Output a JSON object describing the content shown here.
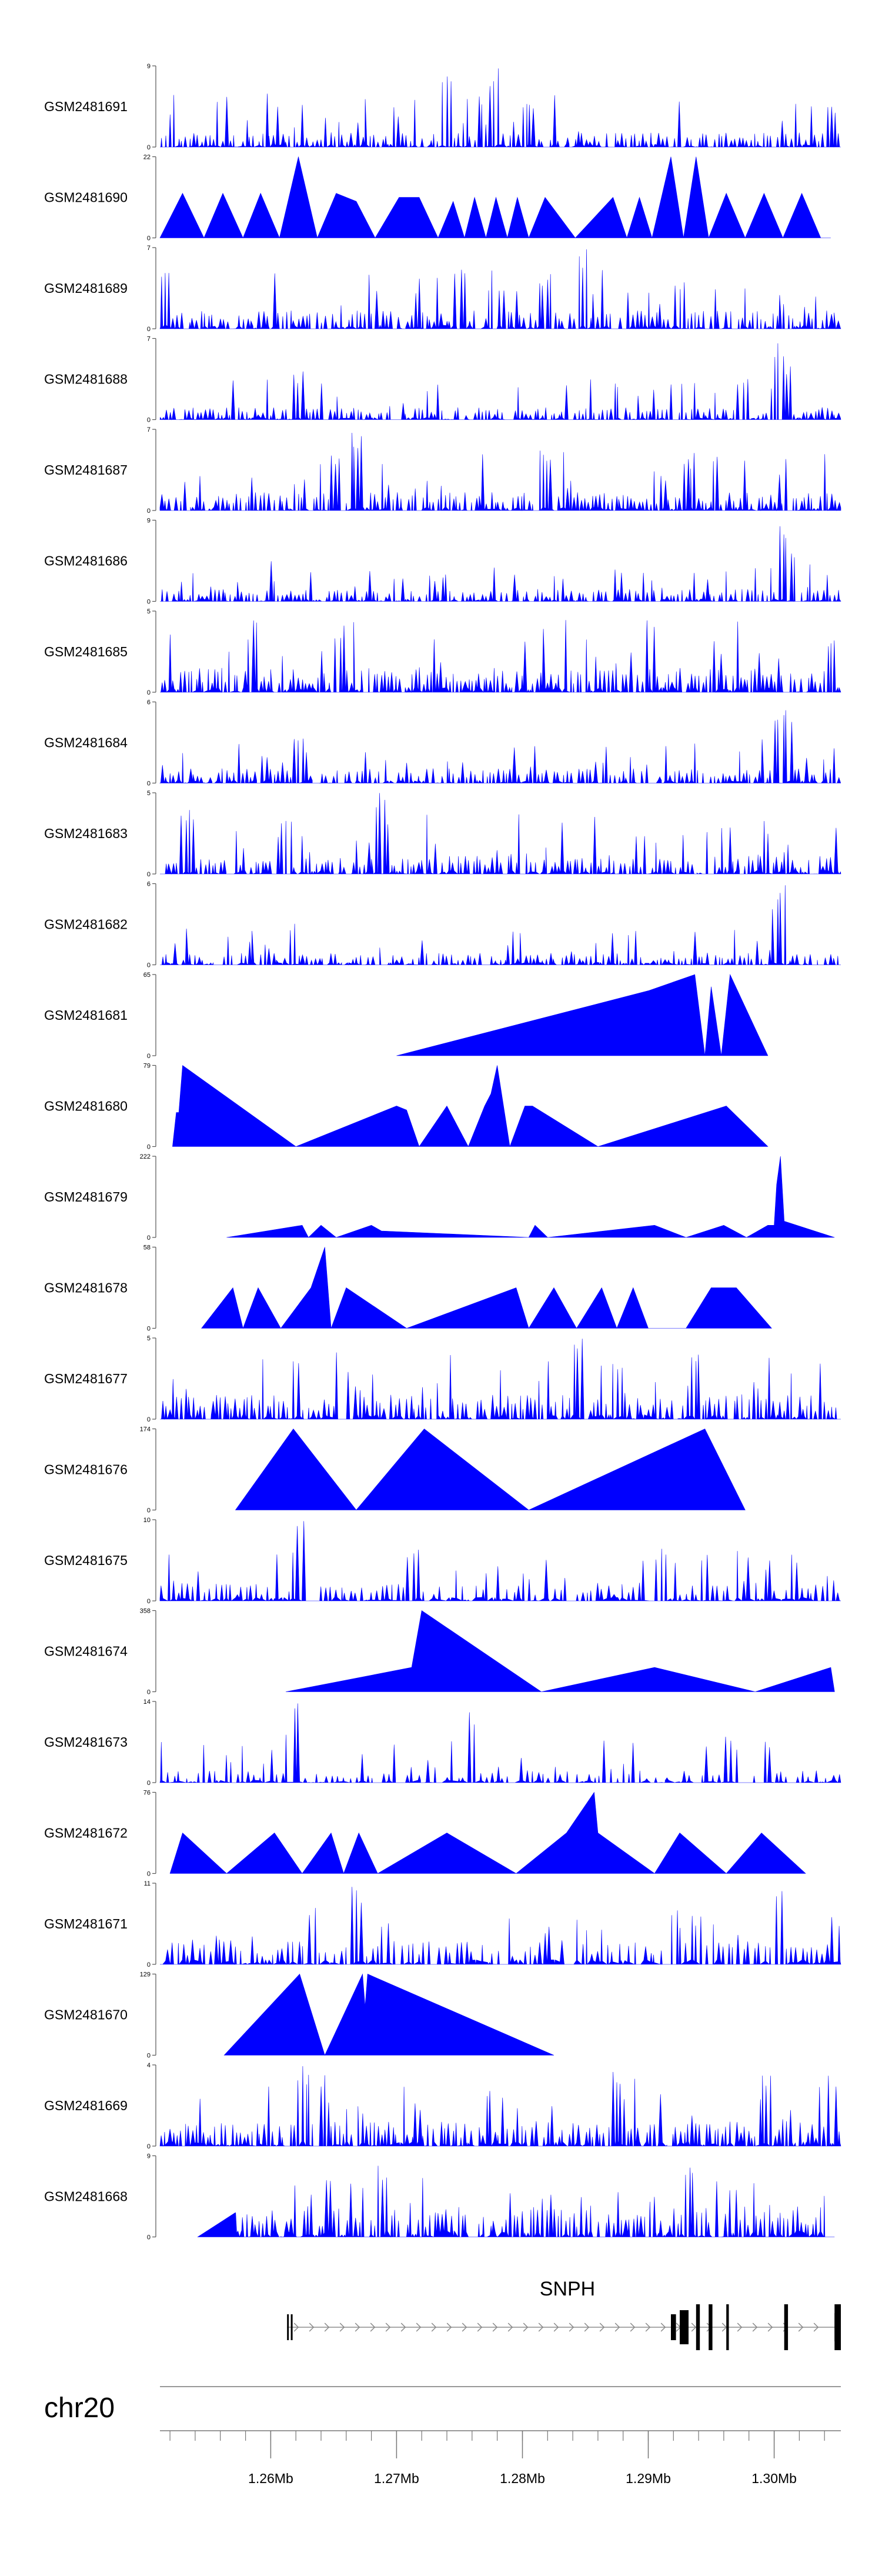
{
  "chart_data": {
    "type": "area",
    "title": "",
    "chromosome": "chr20",
    "fill_color": "#0000ff",
    "gene_color": "#000000",
    "axis_color": "#555555",
    "x_range": [
      1.2512,
      1.3053
    ],
    "x_unit": "Mb",
    "x_ticks": [
      {
        "value": 1.26,
        "label": "1.26Mb"
      },
      {
        "value": 1.27,
        "label": "1.27Mb"
      },
      {
        "value": 1.28,
        "label": "1.28Mb"
      },
      {
        "value": 1.29,
        "label": "1.29Mb"
      },
      {
        "value": 1.3,
        "label": "1.30Mb"
      }
    ],
    "minor_tick_step": 0.002,
    "tracks": [
      {
        "name": "GSM2481691",
        "ymax": 9,
        "ymax_label": "9",
        "style": "dense",
        "start": 1.2512,
        "end": 1.3053,
        "density": 170,
        "base": 0.12,
        "spike": 0.55,
        "seed": 1,
        "peaks": [
          [
            1.274,
            0.95
          ],
          [
            1.2778,
            1.0
          ],
          [
            1.2805,
            0.55
          ],
          [
            1.3045,
            0.5
          ]
        ]
      },
      {
        "name": "GSM2481690",
        "ymax": 22,
        "ymax_label": "22",
        "style": "sparse",
        "vertices": [
          [
            1.2512,
            0
          ],
          [
            1.253,
            0.55
          ],
          [
            1.2547,
            0
          ],
          [
            1.2562,
            0.55
          ],
          [
            1.2578,
            0
          ],
          [
            1.2592,
            0.55
          ],
          [
            1.2607,
            0
          ],
          [
            1.2622,
            1.0
          ],
          [
            1.2637,
            0
          ],
          [
            1.2652,
            0.55
          ],
          [
            1.2668,
            0.45
          ],
          [
            1.2683,
            0
          ],
          [
            1.2702,
            0.5
          ],
          [
            1.2718,
            0.5
          ],
          [
            1.2733,
            0
          ],
          [
            1.2745,
            0.45
          ],
          [
            1.2754,
            0
          ],
          [
            1.2762,
            0.5
          ],
          [
            1.2771,
            0
          ],
          [
            1.2779,
            0.5
          ],
          [
            1.2788,
            0
          ],
          [
            1.2796,
            0.5
          ],
          [
            1.2805,
            0
          ],
          [
            1.2818,
            0.5
          ],
          [
            1.2842,
            0
          ],
          [
            1.2872,
            0.5
          ],
          [
            1.2883,
            0
          ],
          [
            1.2893,
            0.5
          ],
          [
            1.2903,
            0
          ],
          [
            1.2918,
            1.0
          ],
          [
            1.2928,
            0
          ],
          [
            1.2938,
            1.0
          ],
          [
            1.2948,
            0
          ],
          [
            1.2962,
            0.55
          ],
          [
            1.2977,
            0
          ],
          [
            1.2992,
            0.55
          ],
          [
            1.3007,
            0
          ],
          [
            1.3022,
            0.55
          ],
          [
            1.3037,
            0
          ],
          [
            1.3045,
            0
          ]
        ]
      },
      {
        "name": "GSM2481689",
        "ymax": 7,
        "ymax_label": "7",
        "style": "dense",
        "start": 1.2512,
        "end": 1.3053,
        "density": 175,
        "base": 0.15,
        "spike": 0.6,
        "seed": 2,
        "peaks": [
          [
            1.2517,
            0.8
          ],
          [
            1.2818,
            0.7
          ],
          [
            1.2848,
            1.0
          ],
          [
            1.2925,
            0.6
          ]
        ]
      },
      {
        "name": "GSM2481688",
        "ymax": 7,
        "ymax_label": "7",
        "style": "dense",
        "start": 1.2512,
        "end": 1.3053,
        "density": 170,
        "base": 0.1,
        "spike": 0.4,
        "seed": 3,
        "peaks": [
          [
            1.2622,
            0.6
          ],
          [
            1.2975,
            0.5
          ],
          [
            1.3005,
            1.0
          ],
          [
            1.301,
            0.7
          ]
        ]
      },
      {
        "name": "GSM2481687",
        "ymax": 7,
        "ymax_label": "7",
        "style": "dense",
        "start": 1.2512,
        "end": 1.3053,
        "density": 180,
        "base": 0.15,
        "spike": 0.65,
        "seed": 4,
        "peaks": [
          [
            1.2668,
            1.0
          ],
          [
            1.2652,
            0.7
          ],
          [
            1.2818,
            0.75
          ],
          [
            1.2932,
            0.65
          ]
        ]
      },
      {
        "name": "GSM2481686",
        "ymax": 9,
        "ymax_label": "9",
        "style": "dense",
        "start": 1.2512,
        "end": 1.3053,
        "density": 170,
        "base": 0.1,
        "spike": 0.4,
        "seed": 5,
        "peaks": [
          [
            1.3005,
            1.0
          ],
          [
            1.3012,
            0.6
          ],
          [
            1.3015,
            0.4
          ]
        ]
      },
      {
        "name": "GSM2481685",
        "ymax": 5,
        "ymax_label": "5",
        "style": "dense",
        "start": 1.2512,
        "end": 1.3053,
        "density": 180,
        "base": 0.2,
        "spike": 0.7,
        "seed": 6,
        "peaks": [
          [
            1.2588,
            1.0
          ],
          [
            1.2585,
            0.85
          ],
          [
            1.2655,
            0.8
          ],
          [
            1.3045,
            0.7
          ]
        ]
      },
      {
        "name": "GSM2481684",
        "ymax": 6,
        "ymax_label": "6",
        "style": "dense",
        "start": 1.2512,
        "end": 1.3053,
        "density": 170,
        "base": 0.12,
        "spike": 0.45,
        "seed": 7,
        "peaks": [
          [
            1.2622,
            0.55
          ],
          [
            1.3005,
            0.9
          ],
          [
            1.3008,
            1.0
          ],
          [
            1.3012,
            0.85
          ]
        ]
      },
      {
        "name": "GSM2481683",
        "ymax": 5,
        "ymax_label": "5",
        "style": "dense",
        "start": 1.2512,
        "end": 1.3053,
        "density": 175,
        "base": 0.15,
        "spike": 0.6,
        "seed": 8,
        "peaks": [
          [
            1.2688,
            1.0
          ],
          [
            1.2533,
            0.8
          ],
          [
            1.2612,
            0.75
          ]
        ]
      },
      {
        "name": "GSM2481682",
        "ymax": 6,
        "ymax_label": "6",
        "style": "dense",
        "start": 1.2512,
        "end": 1.3053,
        "density": 165,
        "base": 0.1,
        "spike": 0.35,
        "seed": 9,
        "peaks": [
          [
            1.2617,
            0.55
          ],
          [
            1.3002,
            0.75
          ],
          [
            1.3005,
            1.0
          ],
          [
            1.3008,
            0.8
          ]
        ]
      },
      {
        "name": "GSM2481681",
        "ymax": 65,
        "ymax_label": "65",
        "style": "sparse",
        "vertices": [
          [
            1.27,
            0
          ],
          [
            1.29,
            0.8
          ],
          [
            1.2937,
            1.0
          ],
          [
            1.2945,
            0
          ],
          [
            1.295,
            0.85
          ],
          [
            1.2958,
            0
          ],
          [
            1.2965,
            1.0
          ],
          [
            1.2995,
            0
          ]
        ]
      },
      {
        "name": "GSM2481680",
        "ymax": 79,
        "ymax_label": "79",
        "style": "sparse",
        "vertices": [
          [
            1.2522,
            0
          ],
          [
            1.2525,
            0.42
          ],
          [
            1.2527,
            0.42
          ],
          [
            1.253,
            1.0
          ],
          [
            1.262,
            0
          ],
          [
            1.27,
            0.5
          ],
          [
            1.2708,
            0.45
          ],
          [
            1.2718,
            0
          ],
          [
            1.274,
            0.5
          ],
          [
            1.2757,
            0
          ],
          [
            1.277,
            0.5
          ],
          [
            1.2775,
            0.65
          ],
          [
            1.278,
            1.0
          ],
          [
            1.279,
            0
          ],
          [
            1.2802,
            0.5
          ],
          [
            1.2808,
            0.5
          ],
          [
            1.286,
            0
          ],
          [
            1.2962,
            0.5
          ],
          [
            1.2995,
            0
          ]
        ]
      },
      {
        "name": "GSM2481679",
        "ymax": 222,
        "ymax_label": "222",
        "style": "sparse",
        "vertices": [
          [
            1.2565,
            0
          ],
          [
            1.2625,
            0.15
          ],
          [
            1.263,
            0
          ],
          [
            1.264,
            0.15
          ],
          [
            1.2652,
            0
          ],
          [
            1.268,
            0.15
          ],
          [
            1.2688,
            0.08
          ],
          [
            1.2805,
            0
          ],
          [
            1.281,
            0.15
          ],
          [
            1.282,
            0
          ],
          [
            1.2905,
            0.15
          ],
          [
            1.293,
            0
          ],
          [
            1.296,
            0.15
          ],
          [
            1.2978,
            0
          ],
          [
            1.2995,
            0.15
          ],
          [
            1.3,
            0.15
          ],
          [
            1.3002,
            0.65
          ],
          [
            1.3005,
            1.0
          ],
          [
            1.3008,
            0.2
          ],
          [
            1.3048,
            0
          ]
        ]
      },
      {
        "name": "GSM2481678",
        "ymax": 58,
        "ymax_label": "58",
        "style": "sparse",
        "vertices": [
          [
            1.2545,
            0
          ],
          [
            1.257,
            0.5
          ],
          [
            1.2578,
            0
          ],
          [
            1.259,
            0.5
          ],
          [
            1.2608,
            0
          ],
          [
            1.2632,
            0.5
          ],
          [
            1.2643,
            1.0
          ],
          [
            1.2648,
            0
          ],
          [
            1.266,
            0.5
          ],
          [
            1.2708,
            0
          ],
          [
            1.2795,
            0.5
          ],
          [
            1.2805,
            0
          ],
          [
            1.2825,
            0.5
          ],
          [
            1.2843,
            0
          ],
          [
            1.2863,
            0.5
          ],
          [
            1.2875,
            0
          ],
          [
            1.2888,
            0.5
          ],
          [
            1.29,
            0
          ],
          [
            1.293,
            0
          ],
          [
            1.295,
            0.5
          ],
          [
            1.297,
            0.5
          ],
          [
            1.2998,
            0
          ]
        ]
      },
      {
        "name": "GSM2481677",
        "ymax": 5,
        "ymax_label": "5",
        "style": "dense",
        "start": 1.2512,
        "end": 1.3053,
        "density": 175,
        "base": 0.2,
        "spike": 0.65,
        "seed": 10,
        "peaks": [
          [
            1.2845,
            1.0
          ],
          [
            1.2938,
            0.8
          ],
          [
            1.2875,
            0.7
          ]
        ]
      },
      {
        "name": "GSM2481676",
        "ymax": 174,
        "ymax_label": "174",
        "style": "sparse",
        "vertices": [
          [
            1.2572,
            0
          ],
          [
            1.2618,
            1.0
          ],
          [
            1.2668,
            0
          ],
          [
            1.2722,
            1.0
          ],
          [
            1.2805,
            0
          ],
          [
            1.2945,
            1.0
          ],
          [
            1.2977,
            0
          ]
        ]
      },
      {
        "name": "GSM2481675",
        "ymax": 10,
        "ymax_label": "10",
        "style": "dense",
        "start": 1.2512,
        "end": 1.3053,
        "density": 130,
        "base": 0.15,
        "spike": 0.5,
        "seed": 11,
        "peaks": [
          [
            1.2623,
            1.0
          ],
          [
            1.291,
            0.65
          ],
          [
            1.2945,
            0.6
          ],
          [
            1.3015,
            0.6
          ]
        ]
      },
      {
        "name": "GSM2481674",
        "ymax": 358,
        "ymax_label": "358",
        "style": "sparse",
        "vertices": [
          [
            1.2612,
            0
          ],
          [
            1.2712,
            0.3
          ],
          [
            1.272,
            1.0
          ],
          [
            1.2815,
            0
          ],
          [
            1.2905,
            0.3
          ],
          [
            1.2985,
            0
          ],
          [
            1.3045,
            0.3
          ],
          [
            1.3048,
            0
          ]
        ]
      },
      {
        "name": "GSM2481673",
        "ymax": 14,
        "ymax_label": "14",
        "style": "dense",
        "start": 1.2512,
        "end": 1.3053,
        "density": 120,
        "base": 0.1,
        "spike": 0.45,
        "seed": 12,
        "peaks": [
          [
            1.2622,
            1.0
          ],
          [
            1.2615,
            0.7
          ],
          [
            1.2758,
            0.95
          ],
          [
            1.2962,
            0.6
          ]
        ]
      },
      {
        "name": "GSM2481672",
        "ymax": 76,
        "ymax_label": "76",
        "style": "sparse",
        "vertices": [
          [
            1.252,
            0
          ],
          [
            1.253,
            0.5
          ],
          [
            1.2565,
            0
          ],
          [
            1.2603,
            0.5
          ],
          [
            1.2625,
            0
          ],
          [
            1.2648,
            0.5
          ],
          [
            1.2658,
            0
          ],
          [
            1.267,
            0.5
          ],
          [
            1.2685,
            0
          ],
          [
            1.274,
            0.5
          ],
          [
            1.2795,
            0
          ],
          [
            1.2835,
            0.5
          ],
          [
            1.2857,
            1.0
          ],
          [
            1.286,
            0.5
          ],
          [
            1.2905,
            0
          ],
          [
            1.2925,
            0.5
          ],
          [
            1.2962,
            0
          ],
          [
            1.299,
            0.5
          ],
          [
            1.3025,
            0
          ]
        ]
      },
      {
        "name": "GSM2481671",
        "ymax": 11,
        "ymax_label": "11",
        "style": "dense",
        "start": 1.2512,
        "end": 1.3053,
        "density": 130,
        "base": 0.2,
        "spike": 0.5,
        "seed": 13,
        "peaks": [
          [
            1.2668,
            1.0
          ],
          [
            1.3005,
            0.95
          ],
          [
            1.2938,
            0.6
          ]
        ]
      },
      {
        "name": "GSM2481670",
        "ymax": 129,
        "ymax_label": "129",
        "style": "sparse",
        "vertices": [
          [
            1.2563,
            0
          ],
          [
            1.2623,
            1.0
          ],
          [
            1.2643,
            0
          ],
          [
            1.2673,
            1.0
          ],
          [
            1.2675,
            0.6
          ],
          [
            1.2677,
            1.0
          ],
          [
            1.2825,
            0
          ]
        ]
      },
      {
        "name": "GSM2481669",
        "ymax": 4,
        "ymax_label": "4",
        "style": "dense",
        "start": 1.2512,
        "end": 1.3053,
        "density": 180,
        "base": 0.2,
        "spike": 0.7,
        "seed": 14,
        "peaks": [
          [
            1.2628,
            1.0
          ],
          [
            1.2875,
            1.0
          ],
          [
            1.2995,
            0.95
          ]
        ]
      },
      {
        "name": "GSM2481668",
        "ymax": 9,
        "ymax_label": "9",
        "style": "dense",
        "start": 1.2542,
        "end": 1.3048,
        "density": 160,
        "base": 0.25,
        "spike": 0.5,
        "seed": 15,
        "ramp": [
          [
            1.2542,
            0
          ],
          [
            1.2572,
            0.3
          ]
        ],
        "peaks": [
          [
            1.2688,
            0.9
          ],
          [
            1.2933,
            0.9
          ]
        ]
      }
    ],
    "gene": {
      "symbol": "SNPH",
      "start": 1.2613,
      "end": 1.3053,
      "exons": [
        [
          1.2613,
          1.2614,
          "small"
        ],
        [
          1.2616,
          1.2617,
          "small"
        ],
        [
          1.2918,
          1.2922,
          "small"
        ],
        [
          1.2925,
          1.2932,
          "medium"
        ],
        [
          1.2938,
          1.2941,
          "tall"
        ],
        [
          1.2948,
          1.2951,
          "tall"
        ],
        [
          1.2962,
          1.2964,
          "tall"
        ],
        [
          1.3008,
          1.3011,
          "tall"
        ],
        [
          1.3048,
          1.3053,
          "tall"
        ]
      ]
    }
  }
}
